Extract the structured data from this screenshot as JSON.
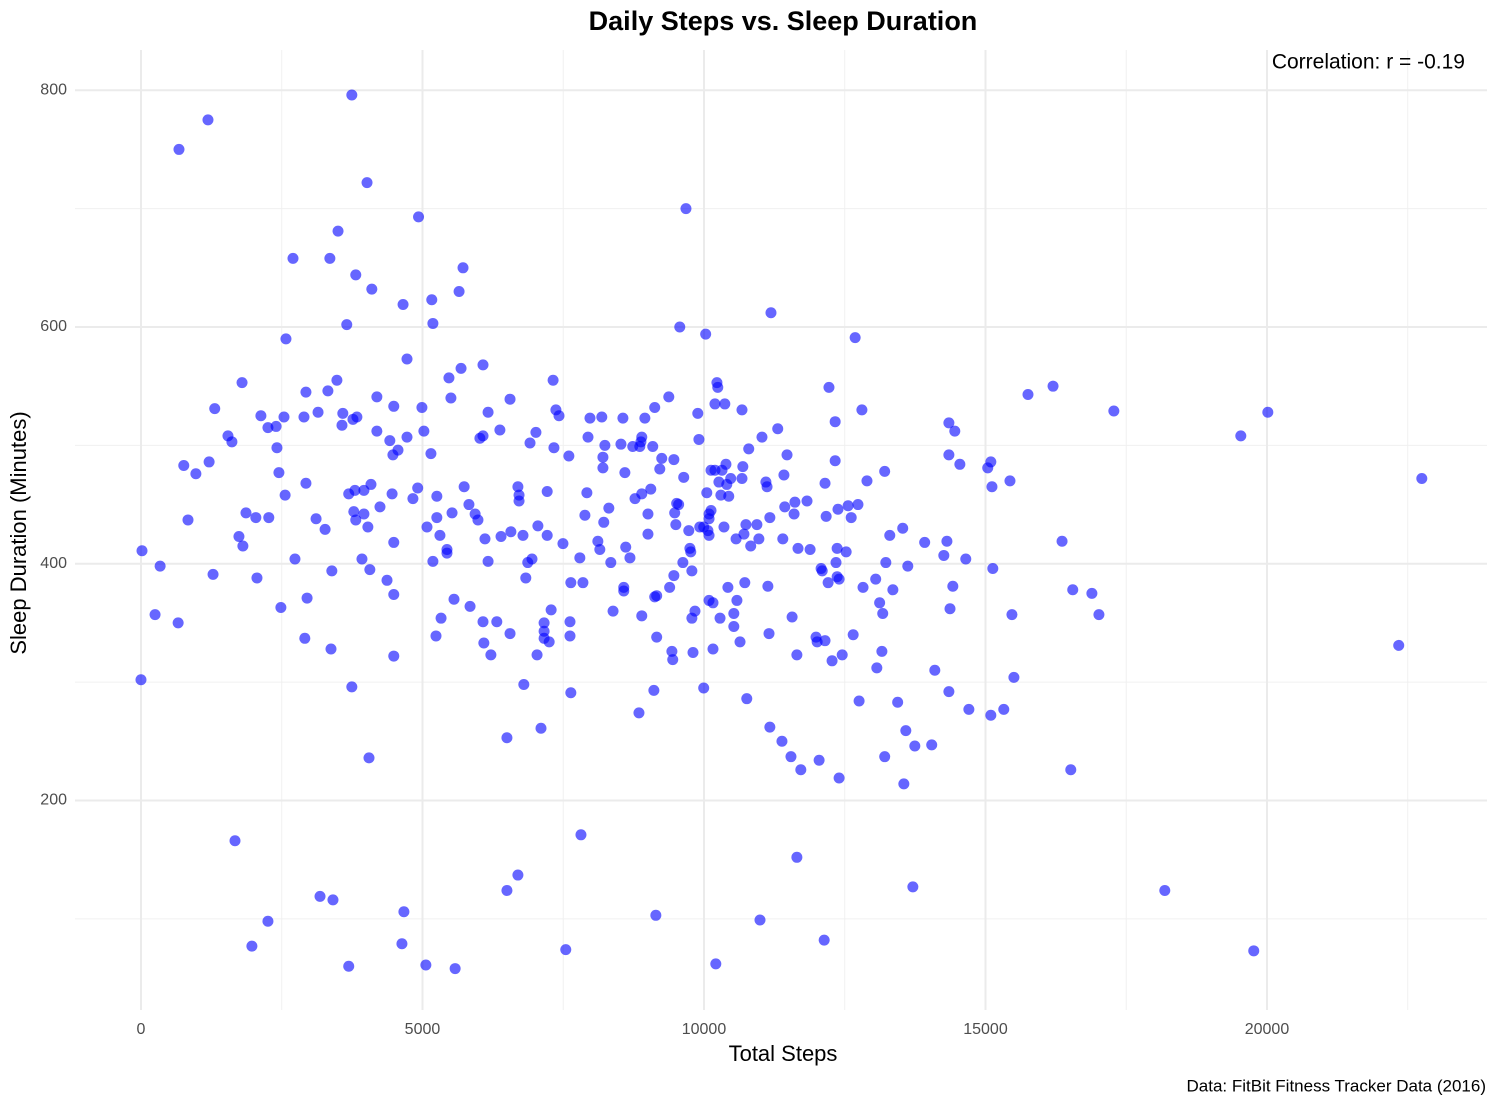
{
  "chart_data": {
    "type": "scatter",
    "title": "Daily Steps vs. Sleep Duration",
    "x_label": "Total Steps",
    "y_label": "Sleep Duration (Minutes)",
    "annotation": "Correlation: r = -0.19",
    "caption": "Data: FitBit Fitness Tracker Data (2016)",
    "color": "#0000ff",
    "grid": true,
    "xlim": [
      -1172,
      23908
    ],
    "ylim": [
      23,
      834
    ],
    "xticks": [
      0,
      5000,
      10000,
      15000,
      20000
    ],
    "yticks": [
      200,
      400,
      600,
      800
    ],
    "x_minor_grid": [
      2500,
      7500,
      12500,
      17500,
      22500
    ],
    "y_minor_grid": [
      100,
      300,
      500,
      700
    ],
    "x": [
      18,
      0,
      250,
      340,
      660,
      675,
      760,
      835,
      975,
      1190,
      1210,
      1280,
      1310,
      1545,
      1615,
      1670,
      1740,
      1795,
      1810,
      1865,
      1970,
      2040,
      2060,
      2130,
      2255,
      2270,
      2255,
      2400,
      2415,
      2450,
      2485,
      2540,
      2560,
      2575,
      2700,
      2735,
      2895,
      2930,
      2930,
      2910,
      2950,
      3110,
      3145,
      3180,
      3270,
      3320,
      3355,
      3375,
      3390,
      3410,
      3480,
      3500,
      3570,
      3585,
      3655,
      3690,
      3690,
      3745,
      3745,
      3765,
      3780,
      3800,
      3815,
      3835,
      3815,
      3925,
      3960,
      3960,
      4015,
      4030,
      4050,
      4065,
      4085,
      4100,
      4190,
      4190,
      4245,
      4370,
      4420,
      4475,
      4490,
      4490,
      4490,
      4490,
      4565,
      4460,
      4655,
      4670,
      4635,
      4725,
      4725,
      4830,
      4915,
      4930,
      4990,
      5025,
      5080,
      5060,
      5150,
      5165,
      5185,
      5185,
      5255,
      5310,
      5255,
      5240,
      5330,
      5435,
      5435,
      5470,
      5505,
      5525,
      5560,
      5580,
      5650,
      5685,
      5720,
      5740,
      5825,
      5845,
      5935,
      5985,
      6020,
      6075,
      6075,
      6075,
      6090,
      6110,
      6165,
      6165,
      6215,
      6320,
      6375,
      6395,
      6500,
      6500,
      6555,
      6555,
      6570,
      6695,
      6695,
      6715,
      6715,
      6785,
      6800,
      6835,
      6870,
      6910,
      6945,
      7015,
      7035,
      7050,
      7105,
      7160,
      7160,
      7160,
      7215,
      7215,
      7250,
      7285,
      7320,
      7335,
      7370,
      7425,
      7495,
      7545,
      7600,
      7620,
      7620,
      7635,
      7635,
      7795,
      7815,
      7850,
      7885,
      7920,
      7940,
      7975,
      8115,
      8150,
      8185,
      8205,
      8205,
      8240,
      8220,
      8310,
      8345,
      8385,
      8525,
      8560,
      8575,
      8575,
      8595,
      8610,
      8685,
      8735,
      8775,
      8845,
      8860,
      8880,
      8895,
      8895,
      8895,
      8950,
      9005,
      9005,
      9055,
      9090,
      9110,
      9125,
      9125,
      9160,
      9145,
      9160,
      9215,
      9250,
      9375,
      9390,
      9430,
      9445,
      9465,
      9465,
      9480,
      9500,
      9515,
      9550,
      9570,
      9625,
      9640,
      9680,
      9730,
      9750,
      9765,
      9785,
      9785,
      9805,
      9840,
      9890,
      9910,
      9925,
      9995,
      10030,
      9995,
      10070,
      10050,
      10090,
      10090,
      10090,
      10090,
      10125,
      10125,
      10160,
      10160,
      10195,
      10195,
      10210,
      10230,
      10245,
      10265,
      10285,
      10300,
      10320,
      10355,
      10370,
      10390,
      10405,
      10425,
      10440,
      10475,
      10530,
      10530,
      10570,
      10585,
      10640,
      10675,
      10675,
      10690,
      10710,
      10725,
      10745,
      10760,
      10795,
      10830,
      10940,
      10975,
      10995,
      11030,
      11100,
      11120,
      11135,
      11155,
      11190,
      11170,
      11170,
      11310,
      11385,
      11400,
      11420,
      11435,
      11475,
      11545,
      11565,
      11600,
      11615,
      11650,
      11650,
      11670,
      11720,
      11830,
      11885,
      11990,
      12010,
      12045,
      12080,
      12100,
      12135,
      12150,
      12150,
      12170,
      12205,
      12220,
      12275,
      12330,
      12330,
      12345,
      12365,
      12365,
      12380,
      12400,
      12400,
      12455,
      12525,
      12560,
      12615,
      12650,
      12685,
      12735,
      12755,
      12805,
      12825,
      12895,
      13050,
      13070,
      13120,
      13160,
      13175,
      13210,
      13210,
      13230,
      13300,
      13355,
      13440,
      13530,
      13550,
      13585,
      13620,
      13710,
      13745,
      13920,
      14045,
      14100,
      14260,
      14315,
      14350,
      14350,
      14350,
      14370,
      14420,
      14455,
      14545,
      14650,
      14705,
      15040,
      15095,
      15095,
      15115,
      15130,
      15325,
      15435,
      15470,
      15505,
      15755,
      16200,
      16360,
      16515,
      16550,
      16890,
      17015,
      17280,
      18185,
      19535,
      19765,
      20015,
      22340,
      22750
    ],
    "values": [
      411,
      302,
      357,
      398,
      350,
      750,
      483,
      437,
      476,
      775,
      486,
      391,
      531,
      508,
      503,
      166,
      423,
      553,
      415,
      443,
      77,
      439,
      388,
      525,
      515,
      439,
      98,
      516,
      498,
      477,
      363,
      524,
      458,
      590,
      658,
      404,
      524,
      545,
      468,
      337,
      371,
      438,
      528,
      119,
      429,
      546,
      658,
      328,
      394,
      116,
      555,
      681,
      517,
      527,
      602,
      60,
      459,
      796,
      296,
      522,
      444,
      462,
      437,
      524,
      644,
      404,
      462,
      442,
      722,
      431,
      236,
      395,
      467,
      632,
      512,
      541,
      448,
      386,
      504,
      492,
      374,
      418,
      322,
      533,
      496,
      459,
      619,
      106,
      79,
      507,
      573,
      455,
      464,
      693,
      532,
      512,
      431,
      61,
      493,
      623,
      603,
      402,
      457,
      424,
      439,
      339,
      354,
      412,
      409,
      557,
      540,
      443,
      370,
      58,
      630,
      565,
      650,
      465,
      450,
      364,
      442,
      437,
      506,
      568,
      508,
      351,
      333,
      421,
      528,
      402,
      323,
      351,
      513,
      423,
      124,
      253,
      539,
      341,
      427,
      137,
      465,
      453,
      458,
      424,
      298,
      388,
      401,
      502,
      404,
      511,
      323,
      432,
      261,
      350,
      343,
      337,
      461,
      424,
      334,
      361,
      555,
      498,
      530,
      525,
      417,
      74,
      491,
      351,
      339,
      384,
      291,
      405,
      171,
      384,
      441,
      460,
      507,
      523,
      419,
      412,
      524,
      481,
      490,
      500,
      435,
      447,
      401,
      360,
      501,
      523,
      380,
      377,
      477,
      414,
      405,
      499,
      455,
      274,
      499,
      503,
      459,
      356,
      507,
      523,
      425,
      442,
      463,
      499,
      293,
      532,
      372,
      373,
      103,
      338,
      480,
      489,
      541,
      380,
      326,
      319,
      390,
      488,
      443,
      433,
      451,
      450,
      600,
      401,
      473,
      700,
      428,
      413,
      410,
      394,
      354,
      325,
      360,
      527,
      505,
      431,
      295,
      594,
      431,
      428,
      460,
      442,
      438,
      424,
      369,
      445,
      479,
      367,
      328,
      479,
      535,
      62,
      553,
      549,
      469,
      354,
      458,
      479,
      431,
      535,
      484,
      467,
      380,
      457,
      472,
      358,
      347,
      421,
      369,
      334,
      530,
      472,
      482,
      425,
      384,
      433,
      286,
      497,
      415,
      433,
      421,
      99,
      507,
      469,
      465,
      381,
      341,
      612,
      439,
      262,
      514,
      250,
      421,
      475,
      448,
      492,
      237,
      355,
      442,
      452,
      152,
      323,
      413,
      226,
      453,
      412,
      338,
      334,
      234,
      396,
      394,
      82,
      335,
      468,
      440,
      384,
      549,
      318,
      520,
      487,
      401,
      413,
      389,
      446,
      387,
      219,
      323,
      410,
      449,
      439,
      340,
      591,
      450,
      284,
      530,
      380,
      470,
      387,
      312,
      367,
      326,
      358,
      478,
      237,
      401,
      424,
      378,
      283,
      430,
      214,
      259,
      398,
      127,
      246,
      418,
      247,
      310,
      407,
      419,
      292,
      519,
      492,
      362,
      381,
      512,
      484,
      404,
      277,
      481,
      486,
      272,
      465,
      396,
      277,
      470,
      357,
      304,
      543,
      550,
      419,
      226,
      378,
      375,
      357,
      529,
      124,
      508,
      73,
      528,
      331,
      472
    ]
  }
}
